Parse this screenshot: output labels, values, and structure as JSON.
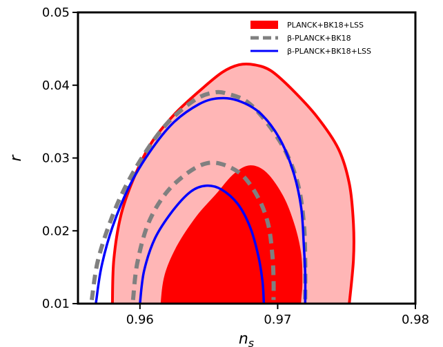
{
  "chart_data": {
    "type": "contour",
    "xlabel": "n",
    "xlabel_sub": "s",
    "ylabel": "r",
    "xlim": [
      0.9555,
      0.98
    ],
    "ylim": [
      0.01,
      0.05
    ],
    "x_ticks": [
      {
        "value": 0.96,
        "label": "0.96"
      },
      {
        "value": 0.97,
        "label": "0.97"
      },
      {
        "value": 0.98,
        "label": "0.98"
      }
    ],
    "y_ticks": [
      {
        "value": 0.01,
        "label": "0.01"
      },
      {
        "value": 0.02,
        "label": "0.02"
      },
      {
        "value": 0.03,
        "label": "0.03"
      },
      {
        "value": 0.04,
        "label": "0.04"
      },
      {
        "value": 0.05,
        "label": "0.05"
      }
    ],
    "grid": false,
    "legend_position": "top-right",
    "colors": {
      "planck_fill_outer": "#ffb6b6",
      "planck_fill_inner": "#ff0000",
      "planck_line": "#ff0000",
      "beta_line": "#808080",
      "beta_lss_line": "#0000ff"
    },
    "series": [
      {
        "name": "PLANCK+BK18+LSS",
        "style": "filled",
        "contours": [
          {
            "level": "95%",
            "points": [
              [
                0.958,
                0.01
              ],
              [
                0.9581,
                0.016
              ],
              [
                0.9586,
                0.022
              ],
              [
                0.9595,
                0.027
              ],
              [
                0.9608,
                0.032
              ],
              [
                0.9625,
                0.036
              ],
              [
                0.9645,
                0.0395
              ],
              [
                0.966,
                0.0418
              ],
              [
                0.9672,
                0.0428
              ],
              [
                0.9683,
                0.0428
              ],
              [
                0.9695,
                0.042
              ],
              [
                0.971,
                0.0395
              ],
              [
                0.9728,
                0.0358
              ],
              [
                0.9744,
                0.0313
              ],
              [
                0.9752,
                0.0265
              ],
              [
                0.9755,
                0.021
              ],
              [
                0.9755,
                0.016
              ],
              [
                0.9752,
                0.01
              ]
            ]
          },
          {
            "level": "68%",
            "points": [
              [
                0.9615,
                0.01
              ],
              [
                0.9618,
                0.014
              ],
              [
                0.9627,
                0.018
              ],
              [
                0.9641,
                0.022
              ],
              [
                0.9655,
                0.025
              ],
              [
                0.9668,
                0.0278
              ],
              [
                0.968,
                0.029
              ],
              [
                0.9692,
                0.028
              ],
              [
                0.9704,
                0.0248
              ],
              [
                0.9712,
                0.021
              ],
              [
                0.9717,
                0.017
              ],
              [
                0.9718,
                0.013
              ],
              [
                0.9717,
                0.01
              ]
            ]
          }
        ]
      },
      {
        "name": "β-PLANCK+BK18",
        "style": "dashed",
        "contours": [
          {
            "level": "95%",
            "points": [
              [
                0.9565,
                0.0105
              ],
              [
                0.9569,
                0.0155
              ],
              [
                0.9577,
                0.0205
              ],
              [
                0.9588,
                0.0255
              ],
              [
                0.9603,
                0.0305
              ],
              [
                0.962,
                0.0348
              ],
              [
                0.964,
                0.038
              ],
              [
                0.9654,
                0.039
              ],
              [
                0.9664,
                0.0388
              ],
              [
                0.9678,
                0.0377
              ],
              [
                0.9692,
                0.0349
              ],
              [
                0.9706,
                0.0308
              ],
              [
                0.9715,
                0.0262
              ],
              [
                0.9719,
                0.021
              ],
              [
                0.972,
                0.016
              ],
              [
                0.972,
                0.0105
              ]
            ]
          },
          {
            "level": "68%",
            "points": [
              [
                0.9595,
                0.0105
              ],
              [
                0.9598,
                0.0155
              ],
              [
                0.9606,
                0.021
              ],
              [
                0.9619,
                0.0252
              ],
              [
                0.9635,
                0.028
              ],
              [
                0.9649,
                0.0293
              ],
              [
                0.9662,
                0.029
              ],
              [
                0.9675,
                0.0275
              ],
              [
                0.9686,
                0.0245
              ],
              [
                0.9693,
                0.021
              ],
              [
                0.9696,
                0.017
              ],
              [
                0.9697,
                0.0135
              ],
              [
                0.9697,
                0.0105
              ]
            ]
          }
        ]
      },
      {
        "name": "β-PLANCK+BK18+LSS",
        "style": "solid-line",
        "contours": [
          {
            "level": "95%",
            "points": [
              [
                0.9568,
                0.01
              ],
              [
                0.9572,
                0.015
              ],
              [
                0.958,
                0.0205
              ],
              [
                0.9592,
                0.026
              ],
              [
                0.9607,
                0.0308
              ],
              [
                0.9624,
                0.0348
              ],
              [
                0.9643,
                0.0374
              ],
              [
                0.9657,
                0.0382
              ],
              [
                0.9671,
                0.0379
              ],
              [
                0.9687,
                0.0362
              ],
              [
                0.9701,
                0.0328
              ],
              [
                0.9711,
                0.0283
              ],
              [
                0.9717,
                0.0233
              ],
              [
                0.9719,
                0.018
              ],
              [
                0.972,
                0.014
              ],
              [
                0.972,
                0.01
              ]
            ]
          },
          {
            "level": "68%",
            "points": [
              [
                0.96,
                0.01
              ],
              [
                0.9603,
                0.0145
              ],
              [
                0.9611,
                0.019
              ],
              [
                0.9624,
                0.0228
              ],
              [
                0.9637,
                0.0254
              ],
              [
                0.9648,
                0.0262
              ],
              [
                0.9659,
                0.0257
              ],
              [
                0.9671,
                0.0237
              ],
              [
                0.968,
                0.0205
              ],
              [
                0.9686,
                0.0165
              ],
              [
                0.9689,
                0.013
              ],
              [
                0.969,
                0.01
              ]
            ]
          }
        ]
      }
    ]
  }
}
